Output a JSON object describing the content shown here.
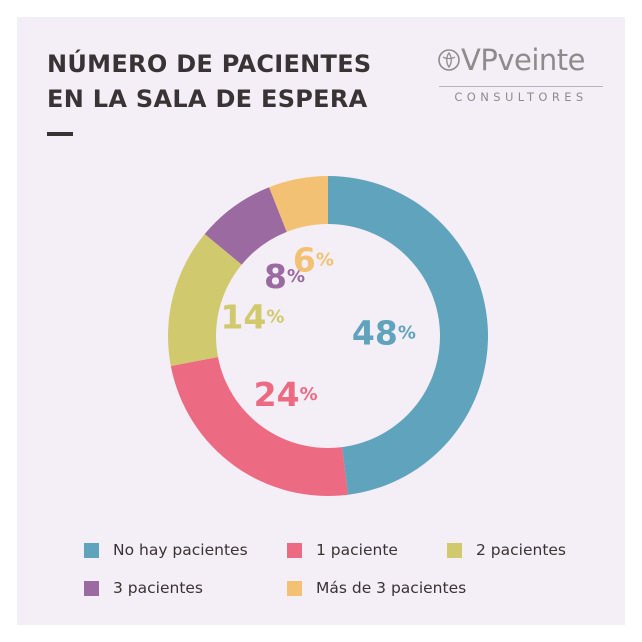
{
  "header": {
    "title_line1": "NÚMERO DE PACIENTES",
    "title_line2": "EN LA SALA DE ESPERA"
  },
  "logo": {
    "name": "VPveinte",
    "subtitle": "CONSULTORES",
    "color": "#8f8b8d"
  },
  "chart_data": {
    "type": "pie",
    "donut": true,
    "title": "NÚMERO DE PACIENTES EN LA SALA DE ESPERA",
    "unit_suffix": "%",
    "legend_position": "bottom",
    "slices": [
      {
        "label": "No hay pacientes",
        "value": 48,
        "color": "#5fa3bd"
      },
      {
        "label": "1 paciente",
        "value": 24,
        "color": "#ec6a82"
      },
      {
        "label": "2 pacientes",
        "value": 14,
        "color": "#d1c96d"
      },
      {
        "label": "3 pacientes",
        "value": 8,
        "color": "#9b6aa1"
      },
      {
        "label": "Más de 3 pacientes",
        "value": 6,
        "color": "#f3c173"
      }
    ]
  }
}
